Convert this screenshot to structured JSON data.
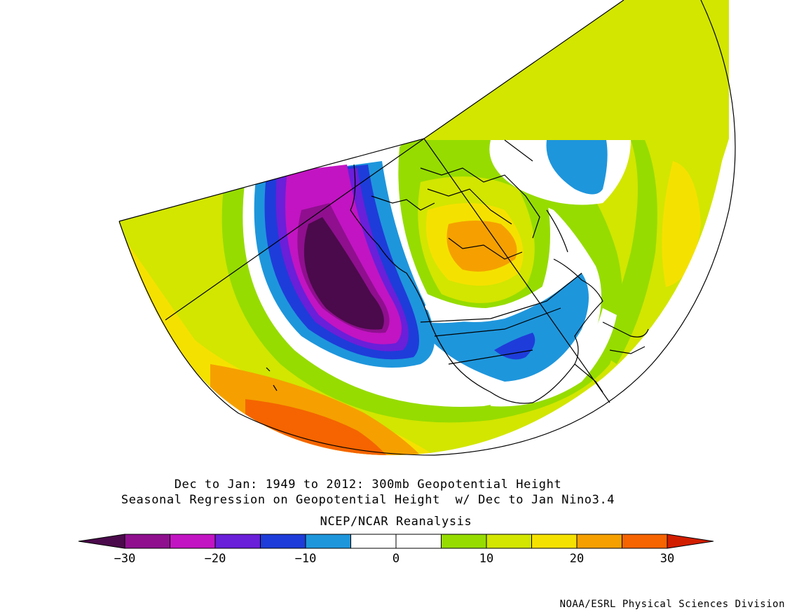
{
  "figure": {
    "title_line1": "Dec to Jan: 1949 to 2012: 300mb Geopotential Height",
    "title_line2": "Seasonal Regression on Geopotential Height  w/ Dec to Jan Nino3.4",
    "dataset": "NCEP/NCAR Reanalysis",
    "credit": "NOAA/ESRL Physical Sciences Division"
  },
  "colorbar": {
    "tick_labels": [
      "−30",
      "−20",
      "−10",
      "0",
      "10",
      "20",
      "30"
    ],
    "levels": [
      -30,
      -25,
      -20,
      -15,
      -10,
      -5,
      0,
      5,
      10,
      15,
      20,
      25,
      30
    ],
    "colors": {
      "below_min": "#4b0a4b",
      "bins": [
        "#8f0f8f",
        "#c214c2",
        "#6a1fd9",
        "#1e3cd9",
        "#1e96dc",
        "#ffffff",
        "#ffffff",
        "#96dc00",
        "#d2e600",
        "#f5e100",
        "#f5a000",
        "#f56400"
      ],
      "above_max": "#d21e00"
    }
  },
  "colors": {
    "land_outline": "#000000",
    "background": "#ffffff"
  }
}
